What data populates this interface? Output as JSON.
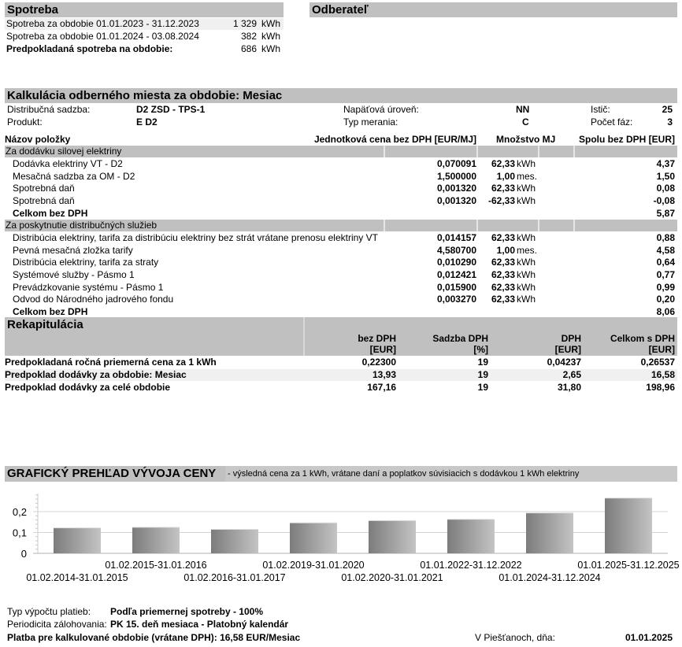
{
  "spotreba": {
    "title": "Spotreba",
    "rows": [
      {
        "label": "Spotreba za obdobie 01.01.2023 - 31.12.2023",
        "value": "1 329",
        "unit": "kWh"
      },
      {
        "label": "Spotreba za obdobie 01.01.2024 - 03.08.2024",
        "value": "382",
        "unit": "kWh"
      },
      {
        "label": "Predpokladaná spotreba na obdobie:",
        "value": "686",
        "unit": "kWh"
      }
    ]
  },
  "odberatel": {
    "title": "Odberateľ"
  },
  "kalkulacia": {
    "title": "Kalkulácia odberného miesta za obdobie: Mesiac",
    "info": {
      "sadzba_label": "Distribučná sadzba:",
      "sadzba": "D2 ZSD - TPS-1",
      "produkt_label": "Produkt:",
      "produkt": "E D2",
      "napatie_label": "Napäťová úroveň:",
      "napatie": "NN",
      "meranie_label": "Typ merania:",
      "meranie": "C",
      "istic_label": "Istič:",
      "istic": "25",
      "fazy_label": "Počet fáz:",
      "fazy": "3"
    },
    "columns": {
      "name": "Názov položky",
      "unit_price": "Jednotková cena bez DPH [EUR/MJ]",
      "qty": "Množstvo MJ",
      "total": "Spolu bez DPH [EUR]"
    },
    "sections": [
      {
        "title": "Za dodávku silovej elektriny",
        "items": [
          {
            "name": "Dodávka elektriny VT - D2",
            "price": "0,070091",
            "qty": "62,33",
            "unit": "kWh",
            "total": "4,37"
          },
          {
            "name": "Mesačná sadzba za OM - D2",
            "price": "1,500000",
            "qty": "1,00",
            "unit": "mes.",
            "total": "1,50"
          },
          {
            "name": "Spotrebná daň",
            "price": "0,001320",
            "qty": "62,33",
            "unit": "kWh",
            "total": "0,08"
          },
          {
            "name": "Spotrebná daň",
            "price": "0,001320",
            "qty": "-62,33",
            "unit": "kWh",
            "total": "-0,08"
          }
        ],
        "subtotal_label": "Celkom bez DPH",
        "subtotal": "5,87"
      },
      {
        "title": "Za poskytnutie distribučných služieb",
        "items": [
          {
            "name": "Distribúcia elektriny, tarifa za distribúciu elektriny bez strát vrátane prenosu elektriny VT",
            "price": "0,014157",
            "qty": "62,33",
            "unit": "kWh",
            "total": "0,88"
          },
          {
            "name": "Pevná mesačná zložka tarify",
            "price": "4,580700",
            "qty": "1,00",
            "unit": "mes.",
            "total": "4,58"
          },
          {
            "name": "Distribúcia elektriny, tarifa za straty",
            "price": "0,010290",
            "qty": "62,33",
            "unit": "kWh",
            "total": "0,64"
          },
          {
            "name": "Systémové služby - Pásmo 1",
            "price": "0,012421",
            "qty": "62,33",
            "unit": "kWh",
            "total": "0,77"
          },
          {
            "name": "Prevádzkovanie systému - Pásmo 1",
            "price": "0,015900",
            "qty": "62,33",
            "unit": "kWh",
            "total": "0,99"
          },
          {
            "name": "Odvod do Národného jadrového fondu",
            "price": "0,003270",
            "qty": "62,33",
            "unit": "kWh",
            "total": "0,20"
          }
        ],
        "subtotal_label": "Celkom bez DPH",
        "subtotal": "8,06"
      }
    ]
  },
  "rekap": {
    "title": "Rekapitulácia",
    "columns": [
      [
        "bez DPH",
        "[EUR]"
      ],
      [
        "Sadzba DPH",
        "[%]"
      ],
      [
        "DPH",
        "[EUR]"
      ],
      [
        "Celkom s DPH",
        "[EUR]"
      ]
    ],
    "rows": [
      {
        "label": "Predpokladaná ročná priemerná cena za 1 kWh",
        "v": [
          "0,22300",
          "19",
          "0,04237",
          "0,26537"
        ]
      },
      {
        "label": "Predpoklad dodávky za obdobie: Mesiac",
        "v": [
          "13,93",
          "19",
          "2,65",
          "16,58"
        ]
      },
      {
        "label": "Predpoklad dodávky za celé obdobie",
        "v": [
          "167,16",
          "19",
          "31,80",
          "198,96"
        ]
      }
    ]
  },
  "graf": {
    "title": "GRAFICKÝ PREHĽAD VÝVOJA CENY",
    "subtitle": "- výsledná cena za 1 kWh, vrátane daní a poplatkov súvisiacich s dodávkou 1 kWh elektriny"
  },
  "chart_data": {
    "type": "bar",
    "ylim": [
      0,
      0.28
    ],
    "grid": true,
    "yticks": [
      "0",
      "0,1",
      "0,2"
    ],
    "ytick_values": [
      0,
      0.1,
      0.2
    ],
    "categories": [
      "01.02.2014-31.01.2015",
      "01.02.2015-31.01.2016",
      "01.02.2016-31.01.2017",
      "01.02.2019-31.01.2020",
      "01.02.2020-31.01.2021",
      "01.01.2022-31.12.2022",
      "01.01.2024-31.12.2024",
      "01.01.2025-31.12.2025"
    ],
    "values": [
      0.122,
      0.125,
      0.115,
      0.146,
      0.157,
      0.163,
      0.194,
      0.265
    ],
    "bar_color": "#a0a0a0"
  },
  "footer": {
    "typ_label": "Typ výpočtu platieb:",
    "typ": "Podľa priemernej spotreby - 100%",
    "perioda_label": "Periodicita zálohovania:",
    "perioda": "PK 15. deň mesiaca - Platobný kalendár",
    "platba": "Platba pre kalkulované obdobie (vrátane DPH): 16,58 EUR/Mesiac",
    "miesto": "V Piešťanoch, dňa:",
    "datum": "01.01.2025"
  }
}
